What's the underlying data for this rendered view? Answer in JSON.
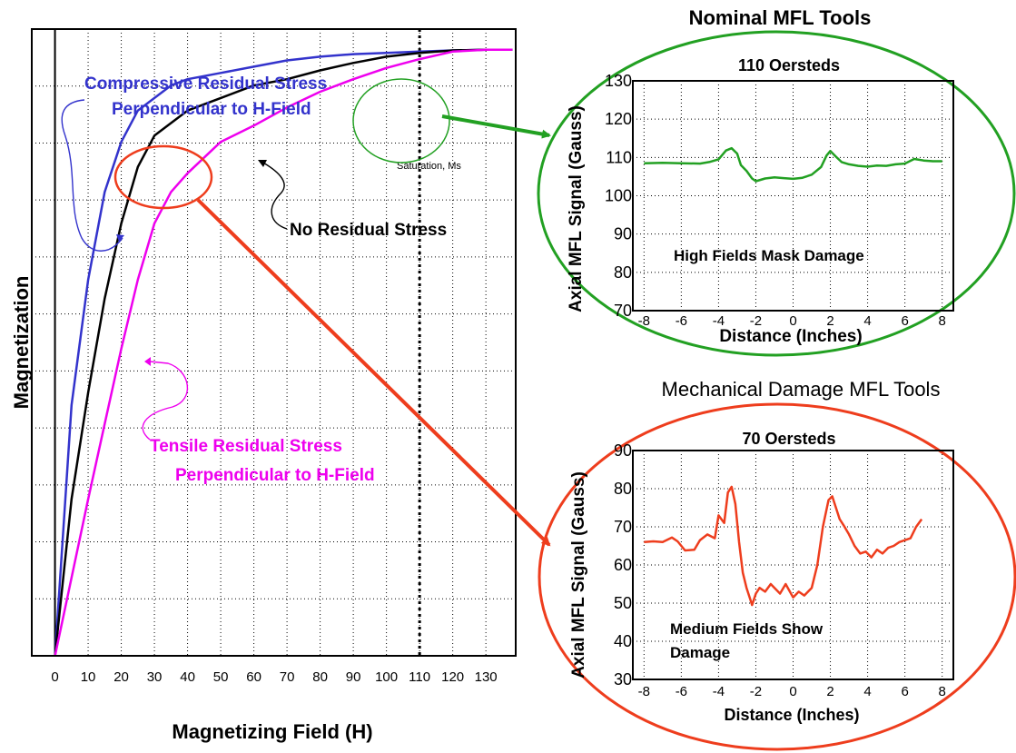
{
  "chart_data": [
    {
      "type": "line",
      "title": "",
      "xlabel": "Magnetizing Field (H)",
      "ylabel": "Magnetization",
      "xlim": [
        -7,
        139
      ],
      "ylim": [
        0,
        100
      ],
      "x_ticks": [
        0,
        10,
        20,
        30,
        40,
        50,
        60,
        70,
        80,
        90,
        100,
        110,
        120,
        130
      ],
      "y_grid_lines": 11,
      "grid": true,
      "reference_line": {
        "x": 110,
        "style": "dotted"
      },
      "annotations": {
        "compressive": [
          "Compressive Residual Stress",
          "Perpendicular to H-Field"
        ],
        "tensile": [
          "Tensile Residual Stress",
          "Perpendicular to H-Field"
        ],
        "none": "No Residual Stress",
        "saturation": "Saturation, Ms"
      },
      "series": [
        {
          "color": "#3333cc",
          "x": [
            0,
            5,
            10,
            15,
            20,
            25,
            30,
            35,
            40,
            50,
            60,
            70,
            80,
            90,
            100,
            110,
            120,
            130,
            138
          ],
          "y": [
            0,
            40,
            60,
            74,
            82,
            87,
            89,
            91,
            92,
            93,
            94,
            95,
            95.6,
            96,
            96.2,
            96.4,
            96.6,
            96.7,
            96.7
          ]
        },
        {
          "color": "#000000",
          "x": [
            0,
            5,
            10,
            15,
            20,
            25,
            30,
            35,
            40,
            50,
            60,
            70,
            80,
            90,
            100,
            110,
            120,
            130,
            138
          ],
          "y": [
            0,
            25,
            42,
            57,
            69,
            78,
            83,
            85,
            87,
            89,
            91,
            92,
            93.4,
            94.6,
            95.6,
            96.2,
            96.6,
            96.7,
            96.7
          ]
        },
        {
          "color": "#ee00ee",
          "x": [
            0,
            10,
            15,
            20,
            25,
            30,
            35,
            40,
            50,
            60,
            70,
            80,
            90,
            100,
            110,
            120,
            130,
            138
          ],
          "y": [
            0,
            25,
            37,
            49,
            60,
            69,
            74,
            77,
            82,
            84.6,
            87.5,
            90,
            92,
            93.8,
            95.2,
            96.4,
            96.7,
            96.7
          ]
        }
      ]
    },
    {
      "type": "line",
      "title": "Nominal MFL Tools",
      "subtitle": "110 Oersteds",
      "xlabel": "Distance (Inches)",
      "ylabel": "Axial MFL Signal (Gauss)",
      "xlim": [
        -8.6,
        8.6
      ],
      "ylim": [
        70,
        130
      ],
      "x_ticks": [
        -8,
        -6,
        -4,
        -2,
        0,
        2,
        4,
        6,
        8
      ],
      "y_ticks": [
        70,
        80,
        90,
        100,
        110,
        120,
        130
      ],
      "grid": true,
      "annotation": "High Fields Mask Damage",
      "series": [
        {
          "color": "#22a022",
          "x": [
            -8,
            -7,
            -6,
            -5,
            -4.5,
            -4,
            -3.6,
            -3.3,
            -3.0,
            -2.8,
            -2.5,
            -2.2,
            -2.0,
            -1.5,
            -1,
            -0.5,
            0,
            0.5,
            1,
            1.5,
            1.8,
            2.0,
            2.3,
            2.6,
            3.0,
            3.5,
            4,
            4.5,
            5,
            5.5,
            6,
            6.5,
            7,
            7.5,
            8
          ],
          "y": [
            108.5,
            108.6,
            108.5,
            108.4,
            108.8,
            109.5,
            111.8,
            112.4,
            111,
            108,
            106.5,
            104.5,
            103.8,
            104.5,
            104.8,
            104.6,
            104.4,
            104.7,
            105.5,
            107.5,
            110.5,
            111.7,
            110.2,
            108.8,
            108.2,
            107.8,
            107.6,
            107.9,
            107.8,
            108.2,
            108.4,
            109.6,
            109.2,
            109,
            109
          ]
        }
      ]
    },
    {
      "type": "line",
      "title": "Mechanical Damage MFL Tools",
      "subtitle": "70 Oersteds",
      "xlabel": "Distance (Inches)",
      "ylabel": "Axial MFL Signal (Gauss)",
      "xlim": [
        -8.6,
        8.6
      ],
      "ylim": [
        30,
        90
      ],
      "x_ticks": [
        -8,
        -6,
        -4,
        -2,
        0,
        2,
        4,
        6,
        8
      ],
      "y_ticks": [
        30,
        40,
        50,
        60,
        70,
        80,
        90
      ],
      "grid": true,
      "annotation": [
        "Medium Fields Show",
        "Damage"
      ],
      "series": [
        {
          "color": "#ee3d1d",
          "x": [
            -8,
            -7.5,
            -7,
            -6.5,
            -6.2,
            -5.8,
            -5.3,
            -5.0,
            -4.6,
            -4.2,
            -4.0,
            -3.7,
            -3.5,
            -3.3,
            -3.1,
            -2.9,
            -2.7,
            -2.5,
            -2.3,
            -2.2,
            -2.0,
            -1.8,
            -1.5,
            -1.2,
            -1,
            -0.7,
            -0.4,
            0,
            0.3,
            0.6,
            1,
            1.3,
            1.6,
            1.9,
            2.1,
            2.3,
            2.5,
            2.7,
            3.0,
            3.3,
            3.6,
            3.9,
            4.2,
            4.5,
            4.8,
            5.1,
            5.4,
            5.7,
            6.0,
            6.3,
            6.6,
            6.9
          ],
          "y": [
            66,
            66.2,
            66,
            67.2,
            66.2,
            63.8,
            64,
            66.5,
            68,
            67,
            73,
            71,
            79,
            80.5,
            76,
            66,
            58,
            54,
            51,
            49.5,
            52.5,
            54,
            53,
            55,
            54,
            52.5,
            55,
            51.5,
            53,
            52,
            54,
            60,
            70,
            77,
            78,
            75,
            72,
            70.5,
            68,
            65,
            63,
            63.5,
            62,
            64,
            63,
            64.5,
            65,
            66,
            66.5,
            67,
            70,
            72
          ]
        }
      ]
    }
  ],
  "callouts": {
    "green_color": "#22a022",
    "red_color": "#ee3d1d"
  }
}
